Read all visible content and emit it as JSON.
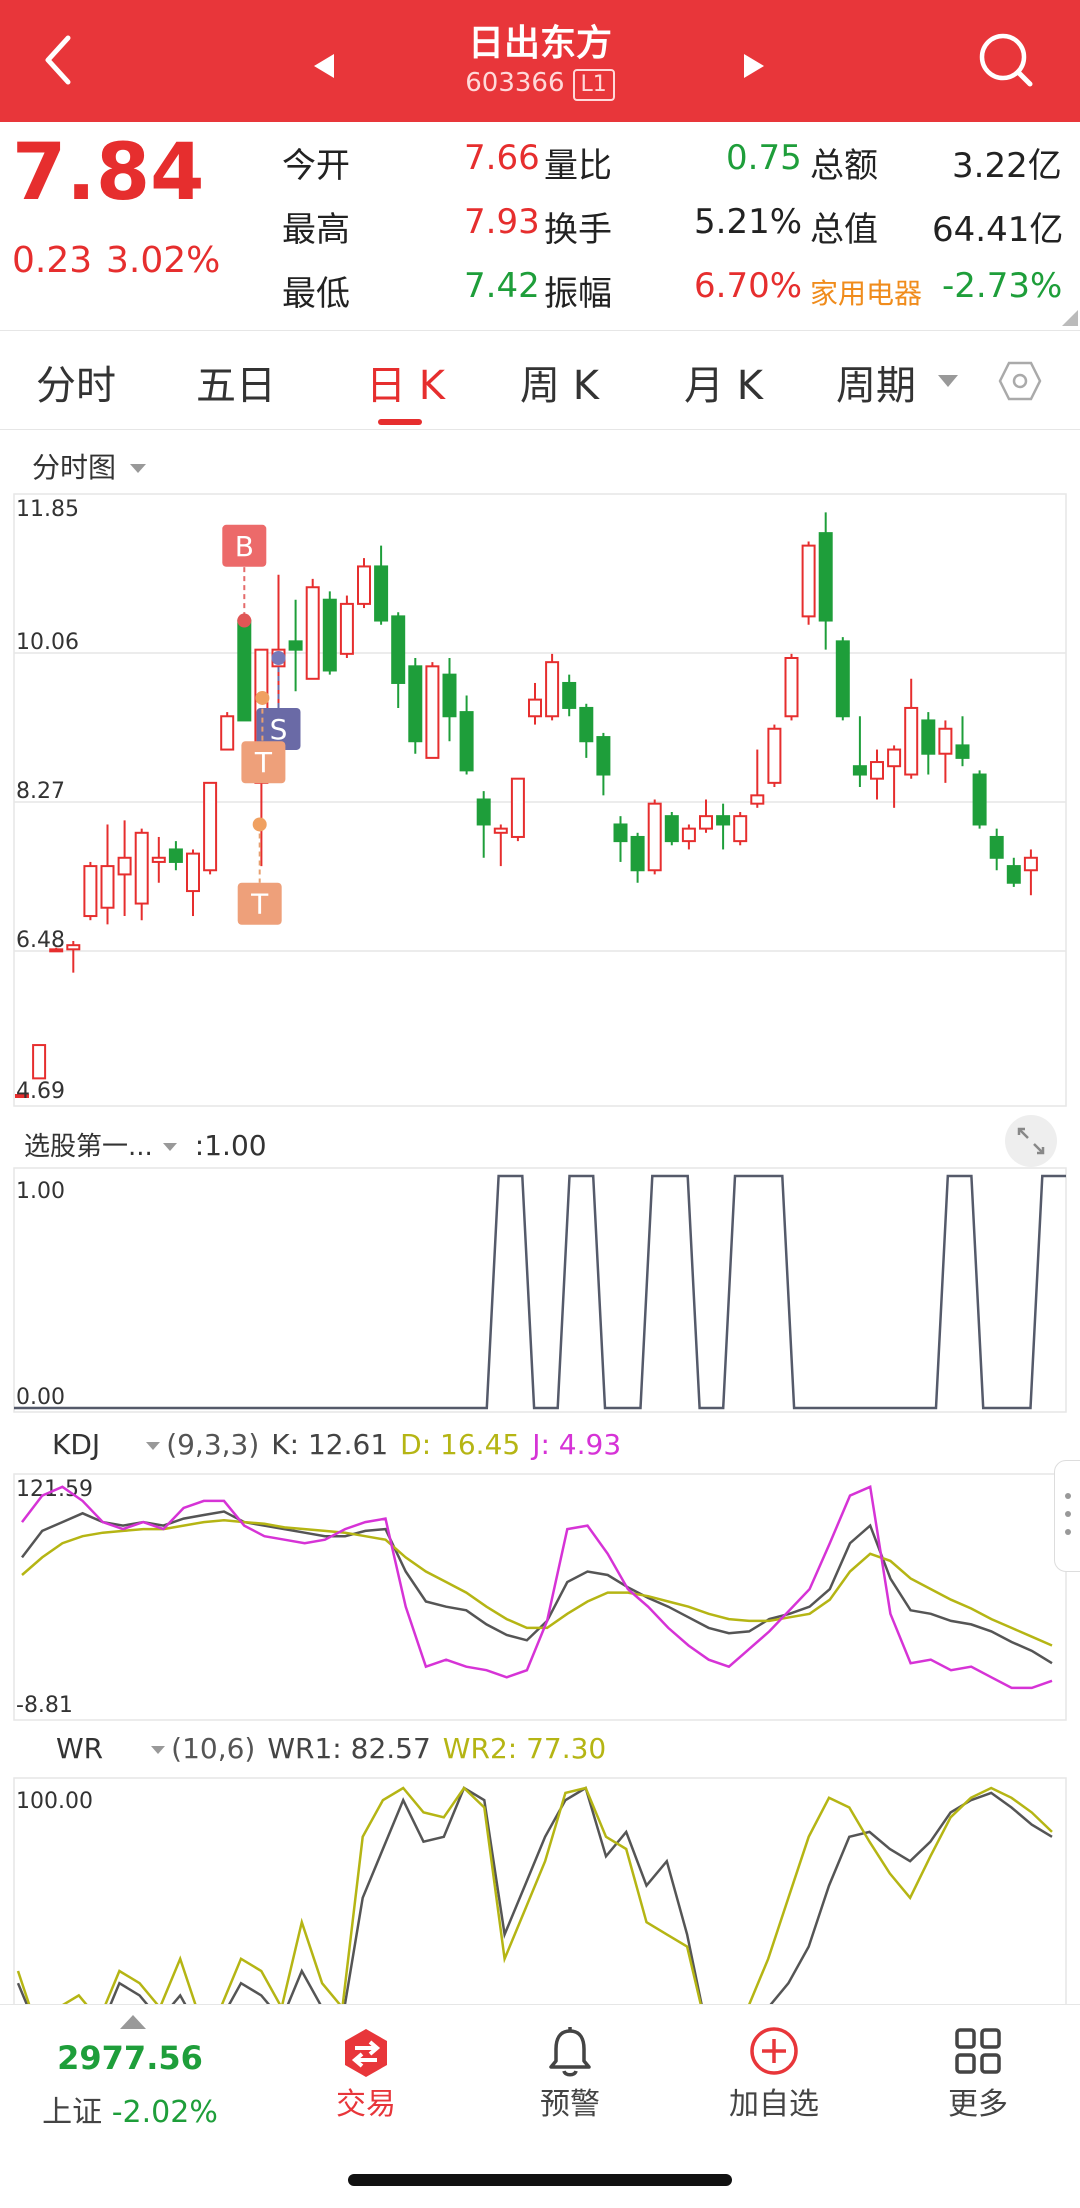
{
  "header": {
    "title": "日出东方",
    "code": "603366",
    "level": "L1"
  },
  "quote": {
    "price": "7.84",
    "change": "0.23",
    "change_pct": "3.02%",
    "open_label": "今开",
    "open": "7.66",
    "vol_ratio_label": "量比",
    "vol_ratio": "0.75",
    "amount_label": "总额",
    "amount": "3.22亿",
    "high_label": "最高",
    "high": "7.93",
    "turnover_label": "换手",
    "turnover": "5.21%",
    "mktcap_label": "总值",
    "mktcap": "64.41亿",
    "low_label": "最低",
    "low": "7.42",
    "amplitude_label": "振幅",
    "amplitude": "6.70%",
    "sector": "家用电器",
    "sector_pct": "-2.73%"
  },
  "tabs": [
    "分时",
    "五日",
    "日 K",
    "周 K",
    "月 K",
    "周期"
  ],
  "active_tab": "日 K",
  "main_chart": {
    "label": "分时图",
    "yticks": [
      "11.85",
      "10.06",
      "8.27",
      "6.48",
      "4.69"
    ]
  },
  "markers": {
    "buy": "B",
    "sell": "S",
    "t1": "T",
    "t2": "T"
  },
  "indicator1": {
    "label": "选股第一...",
    "value": ":1.00",
    "yticks": [
      "1.00",
      "0.00"
    ]
  },
  "kdj": {
    "label": "KDJ",
    "params": "(9,3,3)",
    "k": "K: 12.61",
    "d": "D: 16.45",
    "j": "J: 4.93",
    "yticks": [
      "121.59",
      "-8.81"
    ]
  },
  "wr": {
    "label": "WR",
    "params": "(10,6)",
    "wr1": "WR1: 82.57",
    "wr2": "WR2: 77.30",
    "yticks": [
      "100.00"
    ]
  },
  "bottom": {
    "index_value": "2977.56",
    "index_name": "上证",
    "index_pct": "-2.02%",
    "trade": "交易",
    "alert": "预警",
    "watch": "加自选",
    "more": "更多"
  },
  "colors": {
    "up": "#e62e2e",
    "down": "#1e9e3a",
    "k_line": "#555555",
    "d_line": "#b5b514",
    "j_line": "#d633d6",
    "header": "#e8363a"
  },
  "chart_data": [
    {
      "type": "candlestick",
      "ylim": [
        4.69,
        11.85
      ],
      "yticks": [
        11.85,
        10.06,
        8.27,
        6.48,
        4.69
      ],
      "candles": [
        {
          "o": 4.75,
          "c": 4.75,
          "h": 4.78,
          "l": 4.72
        },
        {
          "o": 4.95,
          "c": 5.35,
          "h": 5.35,
          "l": 4.95
        },
        {
          "o": 6.5,
          "c": 6.5,
          "h": 6.52,
          "l": 6.48
        },
        {
          "o": 6.5,
          "c": 6.55,
          "h": 6.6,
          "l": 6.22
        },
        {
          "o": 6.9,
          "c": 7.5,
          "h": 7.55,
          "l": 6.85
        },
        {
          "o": 7.0,
          "c": 7.5,
          "h": 8.0,
          "l": 6.8
        },
        {
          "o": 7.4,
          "c": 7.6,
          "h": 8.05,
          "l": 6.9
        },
        {
          "o": 7.05,
          "c": 7.9,
          "h": 7.95,
          "l": 6.85
        },
        {
          "o": 7.55,
          "c": 7.6,
          "h": 7.85,
          "l": 7.3
        },
        {
          "o": 7.7,
          "c": 7.55,
          "h": 7.8,
          "l": 7.45
        },
        {
          "o": 7.2,
          "c": 7.65,
          "h": 7.7,
          "l": 6.9
        },
        {
          "o": 7.45,
          "c": 8.5,
          "h": 8.5,
          "l": 7.4
        },
        {
          "o": 8.9,
          "c": 9.3,
          "h": 9.35,
          "l": 8.9
        },
        {
          "o": 10.45,
          "c": 9.25,
          "h": 10.45,
          "l": 9.25
        },
        {
          "o": 8.5,
          "c": 10.1,
          "h": 10.1,
          "l": 7.5
        },
        {
          "o": 9.9,
          "c": 10.1,
          "h": 11.0,
          "l": 9.2
        },
        {
          "o": 10.2,
          "c": 10.1,
          "h": 10.7,
          "l": 9.6
        },
        {
          "o": 9.75,
          "c": 10.85,
          "h": 10.95,
          "l": 9.75
        },
        {
          "o": 10.7,
          "c": 9.85,
          "h": 10.8,
          "l": 9.8
        },
        {
          "o": 10.05,
          "c": 10.65,
          "h": 10.75,
          "l": 10.0
        },
        {
          "o": 10.65,
          "c": 11.1,
          "h": 11.2,
          "l": 10.6
        },
        {
          "o": 11.1,
          "c": 10.45,
          "h": 11.35,
          "l": 10.4
        },
        {
          "o": 10.5,
          "c": 9.7,
          "h": 10.55,
          "l": 9.4
        },
        {
          "o": 9.9,
          "c": 9.0,
          "h": 10.0,
          "l": 8.85
        },
        {
          "o": 8.8,
          "c": 9.9,
          "h": 9.95,
          "l": 8.8
        },
        {
          "o": 9.8,
          "c": 9.3,
          "h": 10.0,
          "l": 9.0
        },
        {
          "o": 9.35,
          "c": 8.65,
          "h": 9.55,
          "l": 8.6
        },
        {
          "o": 8.3,
          "c": 8.0,
          "h": 8.4,
          "l": 7.6
        },
        {
          "o": 7.9,
          "c": 7.95,
          "h": 8.0,
          "l": 7.5
        },
        {
          "o": 7.85,
          "c": 8.55,
          "h": 8.55,
          "l": 7.8
        },
        {
          "o": 9.3,
          "c": 9.5,
          "h": 9.7,
          "l": 9.2
        },
        {
          "o": 9.3,
          "c": 9.95,
          "h": 10.05,
          "l": 9.25
        },
        {
          "o": 9.7,
          "c": 9.4,
          "h": 9.8,
          "l": 9.3
        },
        {
          "o": 9.4,
          "c": 9.0,
          "h": 9.45,
          "l": 8.8
        },
        {
          "o": 9.05,
          "c": 8.6,
          "h": 9.1,
          "l": 8.35
        },
        {
          "o": 8.0,
          "c": 7.8,
          "h": 8.1,
          "l": 7.55
        },
        {
          "o": 7.85,
          "c": 7.45,
          "h": 7.9,
          "l": 7.3
        },
        {
          "o": 7.45,
          "c": 8.25,
          "h": 8.3,
          "l": 7.4
        },
        {
          "o": 8.1,
          "c": 7.8,
          "h": 8.15,
          "l": 7.75
        },
        {
          "o": 7.8,
          "c": 7.95,
          "h": 8.0,
          "l": 7.7
        },
        {
          "o": 7.95,
          "c": 8.1,
          "h": 8.3,
          "l": 7.9
        },
        {
          "o": 8.1,
          "c": 8.0,
          "h": 8.25,
          "l": 7.7
        },
        {
          "o": 7.8,
          "c": 8.1,
          "h": 8.15,
          "l": 7.75
        },
        {
          "o": 8.25,
          "c": 8.35,
          "h": 8.9,
          "l": 8.2
        },
        {
          "o": 8.5,
          "c": 9.15,
          "h": 9.2,
          "l": 8.45
        },
        {
          "o": 9.3,
          "c": 10.0,
          "h": 10.05,
          "l": 9.25
        },
        {
          "o": 10.5,
          "c": 11.35,
          "h": 11.4,
          "l": 10.4
        },
        {
          "o": 11.5,
          "c": 10.45,
          "h": 11.75,
          "l": 10.1
        },
        {
          "o": 10.2,
          "c": 9.3,
          "h": 10.25,
          "l": 9.25
        },
        {
          "o": 8.7,
          "c": 8.6,
          "h": 9.3,
          "l": 8.45
        },
        {
          "o": 8.55,
          "c": 8.75,
          "h": 8.9,
          "l": 8.3
        },
        {
          "o": 8.7,
          "c": 8.9,
          "h": 8.95,
          "l": 8.2
        },
        {
          "o": 8.6,
          "c": 9.4,
          "h": 9.75,
          "l": 8.55
        },
        {
          "o": 9.25,
          "c": 8.85,
          "h": 9.35,
          "l": 8.6
        },
        {
          "o": 8.85,
          "c": 9.15,
          "h": 9.25,
          "l": 8.5
        },
        {
          "o": 8.95,
          "c": 8.8,
          "h": 9.3,
          "l": 8.7
        },
        {
          "o": 8.6,
          "c": 8.0,
          "h": 8.65,
          "l": 7.95
        },
        {
          "o": 7.85,
          "c": 7.6,
          "h": 7.95,
          "l": 7.45
        },
        {
          "o": 7.5,
          "c": 7.3,
          "h": 7.6,
          "l": 7.25
        },
        {
          "o": 7.45,
          "c": 7.6,
          "h": 7.7,
          "l": 7.15
        }
      ]
    },
    {
      "type": "line",
      "name_label": "选股第一...",
      "ylim": [
        0,
        1
      ],
      "x": [
        0,
        40,
        41,
        43,
        44,
        46,
        47,
        49,
        50,
        53,
        54,
        57,
        58,
        60,
        61,
        65,
        66,
        78,
        79,
        81,
        82,
        86,
        87,
        89
      ],
      "values": [
        0,
        0,
        1,
        1,
        0,
        0,
        1,
        1,
        0,
        0,
        1,
        1,
        0,
        0,
        1,
        1,
        0,
        0,
        1,
        1,
        0,
        0,
        1,
        1
      ]
    },
    {
      "type": "line",
      "ylim": [
        -8.81,
        121.59
      ],
      "series": [
        {
          "name": "K",
          "values": [
            80,
            95,
            100,
            105,
            100,
            98,
            100,
            98,
            102,
            104,
            106,
            100,
            98,
            96,
            94,
            92,
            92,
            95,
            96,
            72,
            55,
            52,
            50,
            42,
            36,
            33,
            44,
            66,
            72,
            70,
            63,
            57,
            52,
            46,
            40,
            37,
            38,
            45,
            48,
            52,
            62,
            88,
            98,
            68,
            50,
            48,
            44,
            42,
            38,
            32,
            27,
            20
          ]
        },
        {
          "name": "D",
          "values": [
            70,
            80,
            88,
            92,
            94,
            95,
            96,
            96,
            98,
            100,
            101,
            100,
            99,
            97,
            96,
            95,
            94,
            92,
            90,
            80,
            72,
            66,
            60,
            52,
            45,
            40,
            40,
            48,
            55,
            60,
            60,
            58,
            55,
            52,
            48,
            45,
            44,
            44,
            46,
            48,
            56,
            72,
            82,
            78,
            68,
            62,
            56,
            51,
            45,
            40,
            35,
            30
          ]
        },
        {
          "name": "J",
          "values": [
            100,
            115,
            120,
            112,
            100,
            96,
            100,
            96,
            108,
            112,
            112,
            98,
            92,
            90,
            88,
            90,
            96,
            100,
            102,
            52,
            18,
            22,
            18,
            16,
            12,
            16,
            44,
            96,
            98,
            82,
            62,
            52,
            40,
            30,
            22,
            18,
            28,
            38,
            50,
            62,
            88,
            115,
            120,
            48,
            20,
            22,
            16,
            18,
            12,
            6,
            6,
            10
          ]
        }
      ]
    },
    {
      "type": "line",
      "ylim": [
        0,
        100
      ],
      "series": [
        {
          "name": "WR1",
          "values": [
            20,
            0,
            5,
            10,
            0,
            20,
            15,
            5,
            15,
            0,
            5,
            20,
            15,
            5,
            25,
            10,
            5,
            55,
            75,
            95,
            78,
            80,
            100,
            95,
            40,
            60,
            80,
            95,
            100,
            72,
            82,
            60,
            70,
            40,
            0,
            0,
            5,
            10,
            20,
            35,
            60,
            80,
            82,
            75,
            70,
            78,
            90,
            95,
            98,
            92,
            85,
            80
          ]
        },
        {
          "name": "WR2",
          "values": [
            25,
            0,
            10,
            15,
            5,
            25,
            20,
            10,
            30,
            5,
            10,
            30,
            25,
            10,
            45,
            20,
            10,
            80,
            95,
            100,
            90,
            88,
            100,
            92,
            30,
            50,
            70,
            98,
            100,
            80,
            75,
            45,
            40,
            35,
            0,
            0,
            10,
            30,
            55,
            80,
            96,
            92,
            78,
            65,
            55,
            72,
            88,
            96,
            100,
            96,
            90,
            82
          ]
        }
      ]
    }
  ]
}
